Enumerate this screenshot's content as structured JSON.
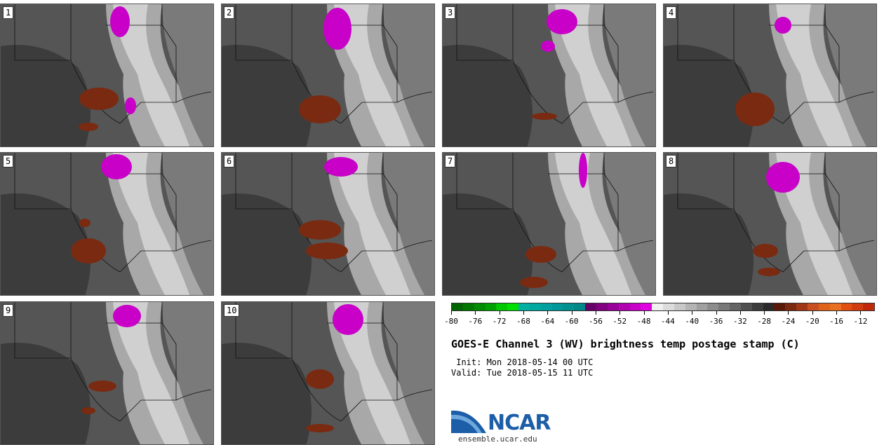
{
  "panels": [
    {
      "label": "1"
    },
    {
      "label": "2"
    },
    {
      "label": "3"
    },
    {
      "label": "4"
    },
    {
      "label": "5"
    },
    {
      "label": "6"
    },
    {
      "label": "7"
    },
    {
      "label": "8"
    },
    {
      "label": "9"
    },
    {
      "label": "10"
    }
  ],
  "title": "GOES-E Channel 3 (WV) brightness temp postage stamp (C)",
  "init_line": " Init: Mon 2018-05-14 00 UTC",
  "valid_line": "Valid: Tue 2018-05-15 11 UTC",
  "colorbar": {
    "tick_labels": [
      "-80",
      "-76",
      "-72",
      "-68",
      "-64",
      "-60",
      "-56",
      "-52",
      "-48",
      "-44",
      "-40",
      "-36",
      "-32",
      "-28",
      "-24",
      "-20",
      "-16",
      "-12"
    ],
    "colors": [
      "#006400",
      "#007800",
      "#008c00",
      "#00a000",
      "#00c800",
      "#00e000",
      "#00b0a0",
      "#00a8a0",
      "#00a0a0",
      "#009898",
      "#009090",
      "#008888",
      "#660066",
      "#800080",
      "#990099",
      "#b000b0",
      "#c800c8",
      "#e000e0",
      "#f0f0f0",
      "#dcdcdc",
      "#c8c8c8",
      "#b4b4b4",
      "#a0a0a0",
      "#8c8c8c",
      "#787878",
      "#646464",
      "#505050",
      "#3c3c3c",
      "#2a2a2a",
      "#5a1a0a",
      "#7a2a10",
      "#a03818",
      "#c85020",
      "#e06418",
      "#e87020",
      "#e05010",
      "#d03c10",
      "#c02808"
    ]
  },
  "logo": {
    "text": "NCAR",
    "url": "ensemble.ucar.edu"
  }
}
